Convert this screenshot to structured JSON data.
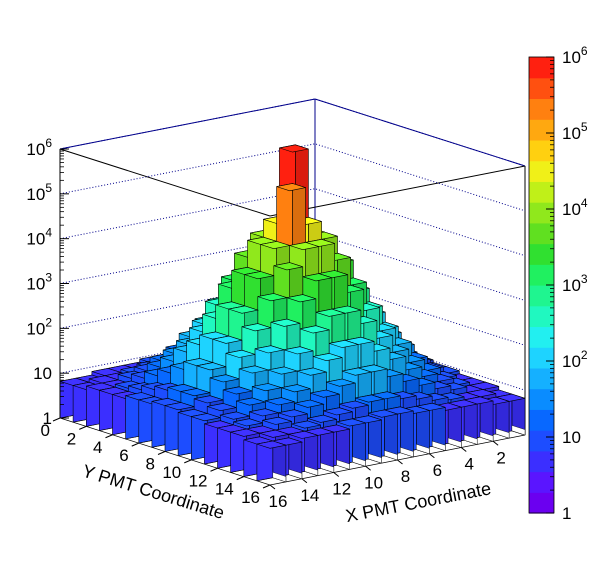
{
  "chart_data": {
    "type": "heatmap",
    "subtype": "lego3d",
    "xlabel": "X PMT Coordinate",
    "ylabel": "Y PMT Coordinate",
    "x_ticks": [
      "16",
      "14",
      "12",
      "10",
      "8",
      "6",
      "4",
      "2"
    ],
    "y_ticks": [
      "0",
      "2",
      "4",
      "6",
      "8",
      "10",
      "12",
      "14",
      "16"
    ],
    "z_scale": "log",
    "z_range": [
      1,
      1000000
    ],
    "z_ticks": [
      {
        "base": "1",
        "exp": ""
      },
      {
        "base": "10",
        "exp": ""
      },
      {
        "base": "10",
        "exp": "2"
      },
      {
        "base": "10",
        "exp": "3"
      },
      {
        "base": "10",
        "exp": "4"
      },
      {
        "base": "10",
        "exp": "5"
      },
      {
        "base": "10",
        "exp": "6"
      }
    ],
    "colorbar_ticks": [
      {
        "base": "1",
        "exp": ""
      },
      {
        "base": "10",
        "exp": ""
      },
      {
        "base": "10",
        "exp": "2"
      },
      {
        "base": "10",
        "exp": "3"
      },
      {
        "base": "10",
        "exp": "4"
      },
      {
        "base": "10",
        "exp": "5"
      },
      {
        "base": "10",
        "exp": "6"
      }
    ],
    "grid": true,
    "palette": [
      "#6b00f0",
      "#5a15ff",
      "#3b2fff",
      "#1d4dff",
      "#0868ff",
      "#0a8cff",
      "#15b0ff",
      "#1ed3ff",
      "#22eff0",
      "#20f8c0",
      "#1ff590",
      "#20f060",
      "#30e030",
      "#60e020",
      "#90e81c",
      "#c0f018",
      "#f0f018",
      "#ffd010",
      "#ffa810",
      "#ff8010",
      "#ff5010",
      "#ff2010"
    ],
    "grid_size": 16,
    "peak": {
      "x": 9,
      "y": 9,
      "value": 1000000
    },
    "values": [
      [
        5,
        5,
        6,
        6,
        6,
        7,
        7,
        8,
        8,
        7,
        7,
        6,
        6,
        6,
        5,
        5
      ],
      [
        5,
        6,
        6,
        7,
        8,
        10,
        12,
        14,
        14,
        12,
        10,
        8,
        7,
        6,
        6,
        5
      ],
      [
        6,
        6,
        8,
        10,
        14,
        20,
        30,
        45,
        45,
        30,
        20,
        14,
        10,
        8,
        6,
        6
      ],
      [
        6,
        7,
        10,
        15,
        25,
        50,
        90,
        150,
        150,
        90,
        50,
        25,
        15,
        10,
        7,
        6
      ],
      [
        6,
        8,
        14,
        25,
        50,
        120,
        300,
        600,
        600,
        300,
        120,
        50,
        25,
        14,
        8,
        6
      ],
      [
        7,
        10,
        20,
        50,
        120,
        400,
        1200,
        3000,
        3000,
        1200,
        400,
        120,
        50,
        20,
        10,
        7
      ],
      [
        7,
        12,
        30,
        90,
        300,
        1200,
        5000,
        12000,
        12000,
        5000,
        1200,
        300,
        90,
        30,
        12,
        7
      ],
      [
        8,
        14,
        45,
        150,
        600,
        3000,
        12000,
        200000,
        30000,
        12000,
        3000,
        600,
        150,
        45,
        14,
        8
      ],
      [
        8,
        14,
        45,
        150,
        600,
        3000,
        12000,
        30000,
        1000000,
        12000,
        3000,
        600,
        150,
        45,
        14,
        8
      ],
      [
        7,
        12,
        30,
        90,
        300,
        1200,
        5000,
        12000,
        12000,
        5000,
        1200,
        300,
        90,
        30,
        12,
        7
      ],
      [
        7,
        10,
        20,
        50,
        120,
        400,
        1200,
        3000,
        3000,
        1200,
        400,
        120,
        50,
        20,
        10,
        7
      ],
      [
        6,
        8,
        14,
        25,
        50,
        120,
        300,
        600,
        600,
        300,
        120,
        50,
        25,
        14,
        8,
        6
      ],
      [
        6,
        7,
        10,
        15,
        25,
        50,
        90,
        150,
        150,
        90,
        50,
        25,
        15,
        10,
        7,
        6
      ],
      [
        6,
        6,
        8,
        10,
        14,
        20,
        30,
        45,
        45,
        30,
        20,
        14,
        10,
        8,
        6,
        6
      ],
      [
        5,
        6,
        6,
        7,
        8,
        10,
        12,
        14,
        14,
        12,
        10,
        8,
        7,
        6,
        6,
        5
      ],
      [
        5,
        5,
        6,
        6,
        6,
        7,
        7,
        8,
        8,
        7,
        7,
        6,
        6,
        6,
        5,
        5
      ]
    ]
  }
}
